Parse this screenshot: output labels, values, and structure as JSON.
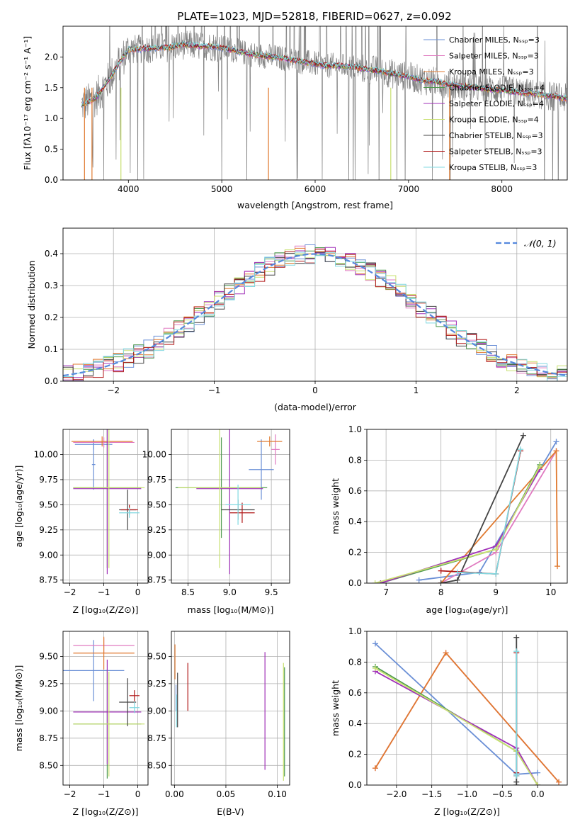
{
  "page": {
    "title": "PLATE=1023, MJD=52818, FIBERID=0627, z=0.092"
  },
  "colors": {
    "Chabrier MILES": "#6a8fd6",
    "Salpeter MILES": "#e07ac0",
    "Kroupa MILES": "#e07a30",
    "Chabrier ELODIE": "#4f9a4f",
    "Salpeter ELODIE": "#a030b8",
    "Kroupa ELODIE": "#c8e070",
    "Chabrier STELIB": "#444444",
    "Salpeter STELIB": "#b01818",
    "Kroupa STELIB": "#80d8e0",
    "data": "#808080",
    "normal": "#5588dd"
  },
  "chart_data": [
    {
      "id": "spectrum",
      "type": "line",
      "title": "PLATE=1023, MJD=52818, FIBERID=0627, z=0.092",
      "xlabel": "wavelength [Angstrom, rest frame]",
      "ylabel": "Flux [f_λ 10^-17 erg cm^-2 s^-1 A^-1]",
      "xlim": [
        3300,
        8700
      ],
      "ylim": [
        0,
        2.5
      ],
      "xticks": [
        4000,
        5000,
        6000,
        7000,
        8000
      ],
      "yticks": [
        0.0,
        0.5,
        1.0,
        1.5,
        2.0
      ],
      "grid": false,
      "legend_position": "top-right",
      "continuum_x": [
        3500,
        3650,
        3800,
        3900,
        4000,
        4150,
        4300,
        4450,
        4600,
        4750,
        4900,
        5000,
        5100,
        5200,
        5350,
        5500,
        5650,
        5800,
        5950,
        6100,
        6250,
        6400,
        6550,
        6700,
        6850,
        7000,
        7150,
        7300,
        7450,
        7600,
        7750,
        7900,
        8050,
        8200,
        8350,
        8500,
        8700
      ],
      "continuum_y": [
        1.22,
        1.33,
        1.65,
        1.9,
        2.12,
        2.13,
        2.15,
        2.16,
        2.2,
        2.18,
        2.17,
        2.15,
        2.12,
        2.08,
        2.04,
        2.01,
        1.98,
        1.94,
        1.9,
        1.86,
        1.86,
        1.84,
        1.8,
        1.77,
        1.72,
        1.68,
        1.62,
        1.6,
        1.55,
        1.52,
        1.5,
        1.47,
        1.45,
        1.42,
        1.4,
        1.37,
        1.32
      ],
      "series": [
        {
          "name": "Chabrier MILES, N_SSP=3"
        },
        {
          "name": "Salpeter MILES, N_SSP=3"
        },
        {
          "name": "Kroupa MILES, N_SSP=3"
        },
        {
          "name": "Chabrier ELODIE, N_SSP=4"
        },
        {
          "name": "Salpeter ELODIE, N_SSP=4"
        },
        {
          "name": "Kroupa ELODIE, N_SSP=4"
        },
        {
          "name": "Chabrier STELIB, N_SSP=3"
        },
        {
          "name": "Salpeter STELIB, N_SSP=3"
        },
        {
          "name": "Kroupa STELIB, N_SSP=3"
        }
      ]
    },
    {
      "id": "residuals",
      "type": "line",
      "xlabel": "(data-model)/error",
      "ylabel": "Normed distribution",
      "xlim": [
        -2.5,
        2.5
      ],
      "ylim": [
        0,
        0.48
      ],
      "xticks": [
        -2,
        -1,
        0,
        1,
        2
      ],
      "yticks": [
        0.0,
        0.1,
        0.2,
        0.3,
        0.4
      ],
      "grid": true,
      "legend_position": "top-right",
      "legend_label": "𝒩(0, 1)",
      "bin_width": 0.1
    },
    {
      "id": "age-Z",
      "type": "scatter",
      "xlabel": "Z [log10(Z/Z☉)]",
      "ylabel": "age [log10(age/yr)]",
      "xlim": [
        -2.2,
        0.3
      ],
      "ylim": [
        8.72,
        10.25
      ],
      "xticks": [
        -2,
        -1,
        0
      ],
      "yticks": [
        8.75,
        9.0,
        9.25,
        9.5,
        9.75,
        10.0
      ],
      "grid": true,
      "points": [
        {
          "model": "Chabrier MILES",
          "x": -1.3,
          "xerr": 0.55,
          "y": 10.1,
          "yerr": 0.05
        },
        {
          "model": "Chabrier MILES",
          "x": -1.3,
          "xerr": 0.05,
          "y": 9.9,
          "yerr": 0.25
        },
        {
          "model": "Salpeter MILES",
          "x": -1.0,
          "xerr": 0.9,
          "y": 10.12,
          "yerr": 0.05
        },
        {
          "model": "Kroupa MILES",
          "x": -1.05,
          "xerr": 0.9,
          "y": 10.13,
          "yerr": 0.05
        },
        {
          "model": "Chabrier ELODIE",
          "x": -0.9,
          "xerr": 1.0,
          "y": 9.67,
          "yerr": 0.8
        },
        {
          "model": "Salpeter ELODIE",
          "x": -0.9,
          "xerr": 1.0,
          "y": 9.66,
          "yerr": 0.85
        },
        {
          "model": "Kroupa ELODIE",
          "x": -0.85,
          "xerr": 1.05,
          "y": 9.67,
          "yerr": 0.8
        },
        {
          "model": "Chabrier STELIB",
          "x": -0.3,
          "xerr": 0.25,
          "y": 9.45,
          "yerr": 0.2
        },
        {
          "model": "Salpeter STELIB",
          "x": -0.25,
          "xerr": 0.25,
          "y": 9.45,
          "yerr": 0.05
        },
        {
          "model": "Kroupa STELIB",
          "x": -0.25,
          "xerr": 0.3,
          "y": 9.42,
          "yerr": 0.05
        }
      ]
    },
    {
      "id": "age-mass",
      "type": "scatter",
      "xlabel": "mass [log10(M/M☉)]",
      "ylabel": "",
      "xlim": [
        8.3,
        9.72
      ],
      "ylim": [
        8.72,
        10.25
      ],
      "xticks": [
        8.5,
        9.0,
        9.5
      ],
      "yticks": [
        8.75,
        9.0,
        9.25,
        9.5,
        9.75,
        10.0
      ],
      "grid": true,
      "points": [
        {
          "model": "Chabrier MILES",
          "x": 9.38,
          "xerr": 0.15,
          "y": 9.85,
          "yerr": 0.3
        },
        {
          "model": "Salpeter MILES",
          "x": 9.55,
          "xerr": 0.05,
          "y": 10.05,
          "yerr": 0.15
        },
        {
          "model": "Kroupa MILES",
          "x": 9.48,
          "xerr": 0.15,
          "y": 10.13,
          "yerr": 0.05
        },
        {
          "model": "Chabrier ELODIE",
          "x": 8.9,
          "xerr": 0.55,
          "y": 9.67,
          "yerr": 0.5
        },
        {
          "model": "Salpeter ELODIE",
          "x": 9.0,
          "xerr": 0.4,
          "y": 9.66,
          "yerr": 0.85
        },
        {
          "model": "Kroupa ELODIE",
          "x": 8.88,
          "xerr": 0.5,
          "y": 9.67,
          "yerr": 0.8
        },
        {
          "model": "Chabrier STELIB",
          "x": 9.1,
          "xerr": 0.2,
          "y": 9.45,
          "yerr": 0.1
        },
        {
          "model": "Salpeter STELIB",
          "x": 9.15,
          "xerr": 0.15,
          "y": 9.42,
          "yerr": 0.1
        },
        {
          "model": "Kroupa STELIB",
          "x": 9.1,
          "xerr": 0.15,
          "y": 9.5,
          "yerr": 0.2
        }
      ]
    },
    {
      "id": "weight-age",
      "type": "line",
      "xlabel": "age [log10(age/yr)]",
      "ylabel": "mass weight",
      "xlim": [
        6.65,
        10.3
      ],
      "ylim": [
        0,
        1.0
      ],
      "xticks": [
        7,
        8,
        9,
        10
      ],
      "yticks": [
        0.0,
        0.2,
        0.4,
        0.6,
        0.8,
        1.0
      ],
      "grid": true,
      "series": [
        {
          "name": "Chabrier MILES",
          "x": [
            7.6,
            8.7,
            10.1
          ],
          "y": [
            0.02,
            0.07,
            0.92
          ]
        },
        {
          "name": "Salpeter MILES",
          "x": [
            8.0,
            9.0,
            10.1
          ],
          "y": [
            0.0,
            0.2,
            0.86
          ]
        },
        {
          "name": "Kroupa MILES",
          "x": [
            8.0,
            10.1,
            10.12
          ],
          "y": [
            0.0,
            0.86,
            0.11
          ]
        },
        {
          "name": "Chabrier ELODIE",
          "x": [
            6.9,
            9.0,
            9.8
          ],
          "y": [
            0.0,
            0.22,
            0.77
          ]
        },
        {
          "name": "Salpeter ELODIE",
          "x": [
            6.9,
            9.0,
            9.8
          ],
          "y": [
            0.0,
            0.24,
            0.74
          ]
        },
        {
          "name": "Kroupa ELODIE",
          "x": [
            6.8,
            9.0,
            9.8
          ],
          "y": [
            0.0,
            0.22,
            0.76
          ]
        },
        {
          "name": "Chabrier STELIB",
          "x": [
            8.0,
            8.3,
            9.5
          ],
          "y": [
            0.0,
            0.02,
            0.96
          ]
        },
        {
          "name": "Salpeter STELIB",
          "x": [
            8.0,
            9.0,
            9.45
          ],
          "y": [
            0.08,
            0.06,
            0.86
          ]
        },
        {
          "name": "Kroupa STELIB",
          "x": [
            8.3,
            9.0,
            9.45
          ],
          "y": [
            0.07,
            0.06,
            0.87
          ]
        }
      ]
    },
    {
      "id": "mass-Z",
      "type": "scatter",
      "xlabel": "Z [log10(Z/Z☉)]",
      "ylabel": "mass [log10(M/M☉)]",
      "xlim": [
        -2.2,
        0.3
      ],
      "ylim": [
        8.32,
        9.73
      ],
      "xticks": [
        -2,
        -1,
        0
      ],
      "yticks": [
        8.5,
        8.75,
        9.0,
        9.25,
        9.5
      ],
      "grid": true,
      "points": [
        {
          "model": "Chabrier MILES",
          "x": -1.3,
          "xerr": 0.9,
          "y": 9.37,
          "yerr": 0.28
        },
        {
          "model": "Salpeter MILES",
          "x": -1.0,
          "xerr": 0.9,
          "y": 9.6,
          "yerr": 0.07
        },
        {
          "model": "Kroupa MILES",
          "x": -1.0,
          "xerr": 0.9,
          "y": 9.53,
          "yerr": 0.15
        },
        {
          "model": "Chabrier ELODIE",
          "x": -0.9,
          "xerr": 1.0,
          "y": 8.88,
          "yerr": 0.5
        },
        {
          "model": "Salpeter ELODIE",
          "x": -0.9,
          "xerr": 1.0,
          "y": 8.99,
          "yerr": 0.48
        },
        {
          "model": "Kroupa ELODIE",
          "x": -0.85,
          "xerr": 1.05,
          "y": 8.88,
          "yerr": 0.48
        },
        {
          "model": "Chabrier STELIB",
          "x": -0.3,
          "xerr": 0.25,
          "y": 9.08,
          "yerr": 0.22
        },
        {
          "model": "Salpeter STELIB",
          "x": -0.1,
          "xerr": 0.15,
          "y": 9.14,
          "yerr": 0.05
        },
        {
          "model": "Kroupa STELIB",
          "x": -0.1,
          "xerr": 0.15,
          "y": 9.03,
          "yerr": 0.05
        }
      ]
    },
    {
      "id": "mass-EBV",
      "type": "scatter",
      "xlabel": "E(B-V)",
      "ylabel": "",
      "xlim": [
        -0.003,
        0.112
      ],
      "ylim": [
        8.32,
        9.73
      ],
      "xticks": [
        0.0,
        0.05,
        0.1
      ],
      "yticks": [
        8.5,
        8.75,
        9.0,
        9.25,
        9.5
      ],
      "grid": true,
      "points": [
        {
          "model": "Kroupa MILES",
          "x": 0.0005,
          "y": 9.45,
          "yerr": 0.16
        },
        {
          "model": "Chabrier MILES",
          "x": 0.0015,
          "y": 9.12,
          "yerr": 0.12
        },
        {
          "model": "Kroupa STELIB",
          "x": 0.002,
          "y": 9.0,
          "yerr": 0.15
        },
        {
          "model": "Chabrier STELIB",
          "x": 0.003,
          "y": 9.1,
          "yerr": 0.25
        },
        {
          "model": "Salpeter STELIB",
          "x": 0.013,
          "y": 9.22,
          "yerr": 0.22
        },
        {
          "model": "Salpeter ELODIE",
          "x": 0.088,
          "y": 9.0,
          "yerr": 0.54
        },
        {
          "model": "Kroupa ELODIE",
          "x": 0.106,
          "y": 8.9,
          "yerr": 0.54
        },
        {
          "model": "Chabrier ELODIE",
          "x": 0.107,
          "y": 8.9,
          "yerr": 0.5
        }
      ]
    },
    {
      "id": "weight-Z",
      "type": "line",
      "xlabel": "Z [log10(Z/Z☉)]",
      "ylabel": "mass weight",
      "xlim": [
        -2.42,
        0.42
      ],
      "ylim": [
        0,
        1.0
      ],
      "xticks": [
        -2.0,
        -1.5,
        -1.0,
        -0.5,
        0.0
      ],
      "yticks": [
        0.0,
        0.2,
        0.4,
        0.6,
        0.8,
        1.0
      ],
      "grid": true,
      "series": [
        {
          "name": "Chabrier MILES",
          "x": [
            -2.3,
            -0.3,
            0.0
          ],
          "y": [
            0.92,
            0.07,
            0.08
          ]
        },
        {
          "name": "Salpeter MILES",
          "x": [
            -2.3,
            -1.3,
            0.3
          ],
          "y": [
            0.11,
            0.86,
            0.02
          ]
        },
        {
          "name": "Kroupa MILES",
          "x": [
            -2.3,
            -1.3,
            0.3
          ],
          "y": [
            0.11,
            0.86,
            0.02
          ]
        },
        {
          "name": "Chabrier ELODIE",
          "x": [
            -2.3,
            -0.3,
            0.0
          ],
          "y": [
            0.77,
            0.22,
            0.0
          ]
        },
        {
          "name": "Salpeter ELODIE",
          "x": [
            -2.3,
            -0.3,
            0.0
          ],
          "y": [
            0.74,
            0.24,
            0.0
          ]
        },
        {
          "name": "Kroupa ELODIE",
          "x": [
            -2.3,
            -0.3,
            0.0
          ],
          "y": [
            0.76,
            0.22,
            0.0
          ]
        },
        {
          "name": "Chabrier STELIB",
          "x": [
            -0.3,
            -0.3,
            -0.3
          ],
          "y": [
            0.96,
            0.02,
            0.0
          ]
        },
        {
          "name": "Salpeter STELIB",
          "x": [
            -0.3,
            -0.3,
            -0.3
          ],
          "y": [
            0.86,
            0.06,
            0.08
          ]
        },
        {
          "name": "Kroupa STELIB",
          "x": [
            -0.3,
            -0.3,
            -0.3
          ],
          "y": [
            0.87,
            0.06,
            0.07
          ]
        }
      ]
    }
  ]
}
